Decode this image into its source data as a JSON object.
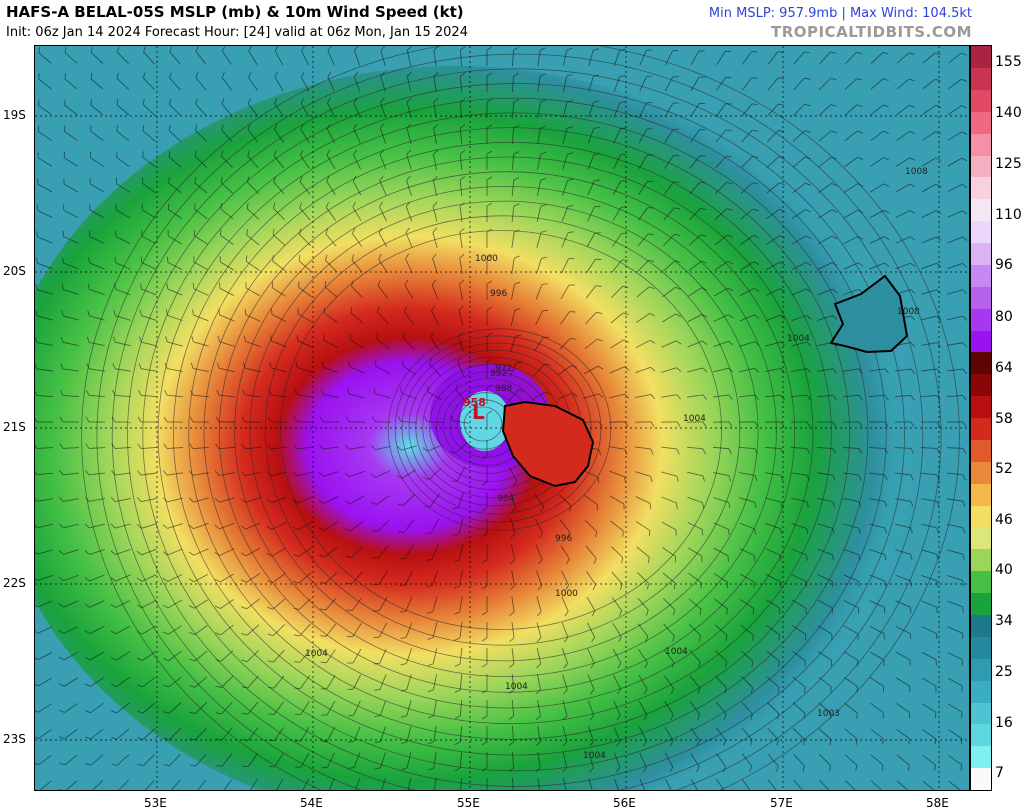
{
  "header": {
    "title": "HAFS-A BELAL-05S MSLP (mb) & 10m Wind Speed (kt)",
    "subtitle": "Init: 06z Jan 14 2024   Forecast Hour: [24]   valid at 06z Mon, Jan 15 2024",
    "stats": "Min MSLP: 957.9mb | Max Wind: 104.5kt",
    "brand": "TROPICALTIDBITS.COM"
  },
  "map": {
    "lat_labels": [
      "19S",
      "20S",
      "21S",
      "22S",
      "23S"
    ],
    "lon_labels": [
      "53E",
      "54E",
      "55E",
      "56E",
      "57E",
      "58E"
    ],
    "low_symbol": "L",
    "center_pressure": "958",
    "isobar_labels": [
      "1000",
      "996",
      "992",
      "988",
      "984",
      "972",
      "996",
      "1000",
      "1004",
      "1004",
      "1004",
      "1004",
      "1008",
      "1004",
      "1008",
      "1004",
      "1003"
    ]
  },
  "colorbar": {
    "labels": [
      "155",
      "140",
      "125",
      "110",
      "96",
      "80",
      "64",
      "58",
      "52",
      "46",
      "40",
      "34",
      "25",
      "16",
      "7"
    ],
    "colors": [
      "#fafafa",
      "#7ef0f2",
      "#5ed8e0",
      "#4cc4d2",
      "#3aaec0",
      "#2e9cb0",
      "#238a9e",
      "#1d7a8c",
      "#1aa33c",
      "#46c145",
      "#9bd65a",
      "#dbe77a",
      "#f2df62",
      "#f2b94a",
      "#e8883a",
      "#e05a2c",
      "#d42a1e",
      "#b80f12",
      "#8a0707",
      "#5e0404",
      "#9a12f0",
      "#a638f2",
      "#b660ee",
      "#c888f2",
      "#dcb4f6",
      "#ecd8fa",
      "#f4e8f6",
      "#f8d0e0",
      "#f6b0c4",
      "#f490a8",
      "#ee6a84",
      "#e24a64",
      "#c83452",
      "#a82442"
    ]
  }
}
